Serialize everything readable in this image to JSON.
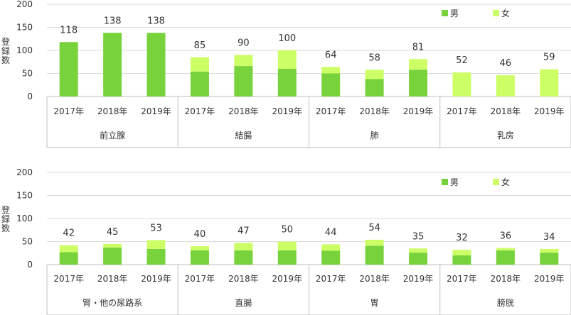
{
  "legend": [
    "男",
    "女"
  ],
  "colors": {
    "male": "#78d23c",
    "female": "#ccff66",
    "grid": "#d9d9d9",
    "frame": "#bfbfbf"
  },
  "chart_data": [
    {
      "type": "bar",
      "stacked": true,
      "ylabel": "登録数",
      "ylim": [
        0,
        200
      ],
      "yticks": [
        0,
        50,
        100,
        150,
        200
      ],
      "legend_position": "top-right",
      "groups": [
        {
          "name": "前立腺",
          "years": [
            "2017年",
            "2018年",
            "2019年"
          ],
          "male": [
            118,
            138,
            138
          ],
          "female": [
            0,
            0,
            0
          ],
          "totals": [
            118,
            138,
            138
          ]
        },
        {
          "name": "結腸",
          "years": [
            "2017年",
            "2018年",
            "2019年"
          ],
          "male": [
            54,
            66,
            60
          ],
          "female": [
            31,
            24,
            40
          ],
          "totals": [
            85,
            90,
            100
          ]
        },
        {
          "name": "肺",
          "years": [
            "2017年",
            "2018年",
            "2019年"
          ],
          "male": [
            50,
            38,
            58
          ],
          "female": [
            14,
            20,
            23
          ],
          "totals": [
            64,
            58,
            81
          ]
        },
        {
          "name": "乳房",
          "years": [
            "2017年",
            "2018年",
            "2019年"
          ],
          "male": [
            0,
            0,
            0
          ],
          "female": [
            52,
            46,
            59
          ],
          "totals": [
            52,
            46,
            59
          ]
        }
      ]
    },
    {
      "type": "bar",
      "stacked": true,
      "ylabel": "登録数",
      "ylim": [
        0,
        200
      ],
      "yticks": [
        0,
        50,
        100,
        150,
        200
      ],
      "legend_position": "top-right",
      "groups": [
        {
          "name": "腎・他の尿路系",
          "years": [
            "2017年",
            "2018年",
            "2019年"
          ],
          "male": [
            27,
            37,
            34
          ],
          "female": [
            15,
            8,
            19
          ],
          "totals": [
            42,
            45,
            53
          ]
        },
        {
          "name": "直腸",
          "years": [
            "2017年",
            "2018年",
            "2019年"
          ],
          "male": [
            31,
            31,
            31
          ],
          "female": [
            9,
            16,
            19
          ],
          "totals": [
            40,
            47,
            50
          ]
        },
        {
          "name": "胃",
          "years": [
            "2017年",
            "2018年",
            "2019年"
          ],
          "male": [
            30,
            41,
            26
          ],
          "female": [
            14,
            13,
            9
          ],
          "totals": [
            44,
            54,
            35
          ]
        },
        {
          "name": "膀胱",
          "years": [
            "2017年",
            "2018年",
            "2019年"
          ],
          "male": [
            20,
            31,
            26
          ],
          "female": [
            12,
            5,
            8
          ],
          "totals": [
            32,
            36,
            34
          ]
        }
      ]
    }
  ]
}
